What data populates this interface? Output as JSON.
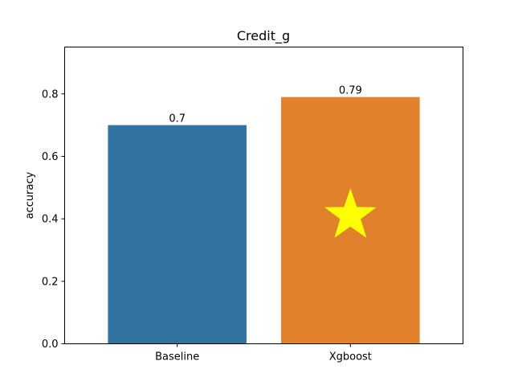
{
  "chart_data": {
    "type": "bar",
    "title": "Credit_g",
    "xlabel": "",
    "ylabel": "accuracy",
    "categories": [
      "Baseline",
      "Xgboost"
    ],
    "values": [
      0.7,
      0.79
    ],
    "data_labels": [
      "0.7",
      "0.79"
    ],
    "colors": [
      "#3274a1",
      "#e1812c"
    ],
    "ylim": [
      0,
      0.95
    ],
    "yticks": [
      0.0,
      0.2,
      0.4,
      0.6,
      0.8
    ],
    "ytick_labels": [
      "0.0",
      "0.2",
      "0.4",
      "0.6",
      "0.8"
    ],
    "grid": false,
    "legend": "none",
    "marker": {
      "shape": "star",
      "category": "Xgboost",
      "y": 0.41,
      "color": "#ffff00"
    }
  }
}
